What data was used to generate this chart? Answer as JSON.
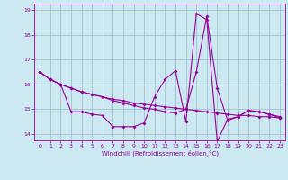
{
  "xlabel": "Windchill (Refroidissement éolien,°C)",
  "background_color": "#cce8f0",
  "line_color": "#990099",
  "grid_color": "#99bbcc",
  "xlim": [
    -0.5,
    23.5
  ],
  "ylim": [
    13.75,
    19.25
  ],
  "yticks": [
    14,
    15,
    16,
    17,
    18,
    19
  ],
  "xticks": [
    0,
    1,
    2,
    3,
    4,
    5,
    6,
    7,
    8,
    9,
    10,
    11,
    12,
    13,
    14,
    15,
    16,
    17,
    18,
    19,
    20,
    21,
    22,
    23
  ],
  "series1_x": [
    0,
    1,
    2,
    3,
    4,
    5,
    6,
    7,
    8,
    9,
    10,
    11,
    12,
    13,
    14,
    15,
    16,
    17,
    18,
    19,
    20,
    21,
    22,
    23
  ],
  "series1_y": [
    16.5,
    16.2,
    16.0,
    14.9,
    14.9,
    14.8,
    14.75,
    14.3,
    14.3,
    14.3,
    14.45,
    15.5,
    16.2,
    16.55,
    14.5,
    18.85,
    18.6,
    13.7,
    14.6,
    14.7,
    14.95,
    14.9,
    14.8,
    14.7
  ],
  "series2_x": [
    0,
    1,
    2,
    3,
    4,
    5,
    6,
    7,
    8,
    9,
    10,
    11,
    12,
    13,
    14,
    15,
    16,
    17,
    18,
    19,
    20,
    21,
    22,
    23
  ],
  "series2_y": [
    16.5,
    16.2,
    16.0,
    15.85,
    15.7,
    15.6,
    15.5,
    15.4,
    15.35,
    15.25,
    15.2,
    15.15,
    15.1,
    15.05,
    15.0,
    14.95,
    14.9,
    14.85,
    14.8,
    14.75,
    14.75,
    14.7,
    14.7,
    14.65
  ],
  "series3_x": [
    0,
    1,
    2,
    3,
    4,
    5,
    6,
    7,
    8,
    9,
    10,
    11,
    12,
    13,
    14,
    15,
    16,
    17,
    18,
    19,
    20,
    21,
    22,
    23
  ],
  "series3_y": [
    16.5,
    16.2,
    16.0,
    15.85,
    15.7,
    15.6,
    15.5,
    15.35,
    15.25,
    15.15,
    15.05,
    15.0,
    14.9,
    14.85,
    15.0,
    16.5,
    18.75,
    15.85,
    14.55,
    14.7,
    14.95,
    14.9,
    14.8,
    14.65
  ]
}
